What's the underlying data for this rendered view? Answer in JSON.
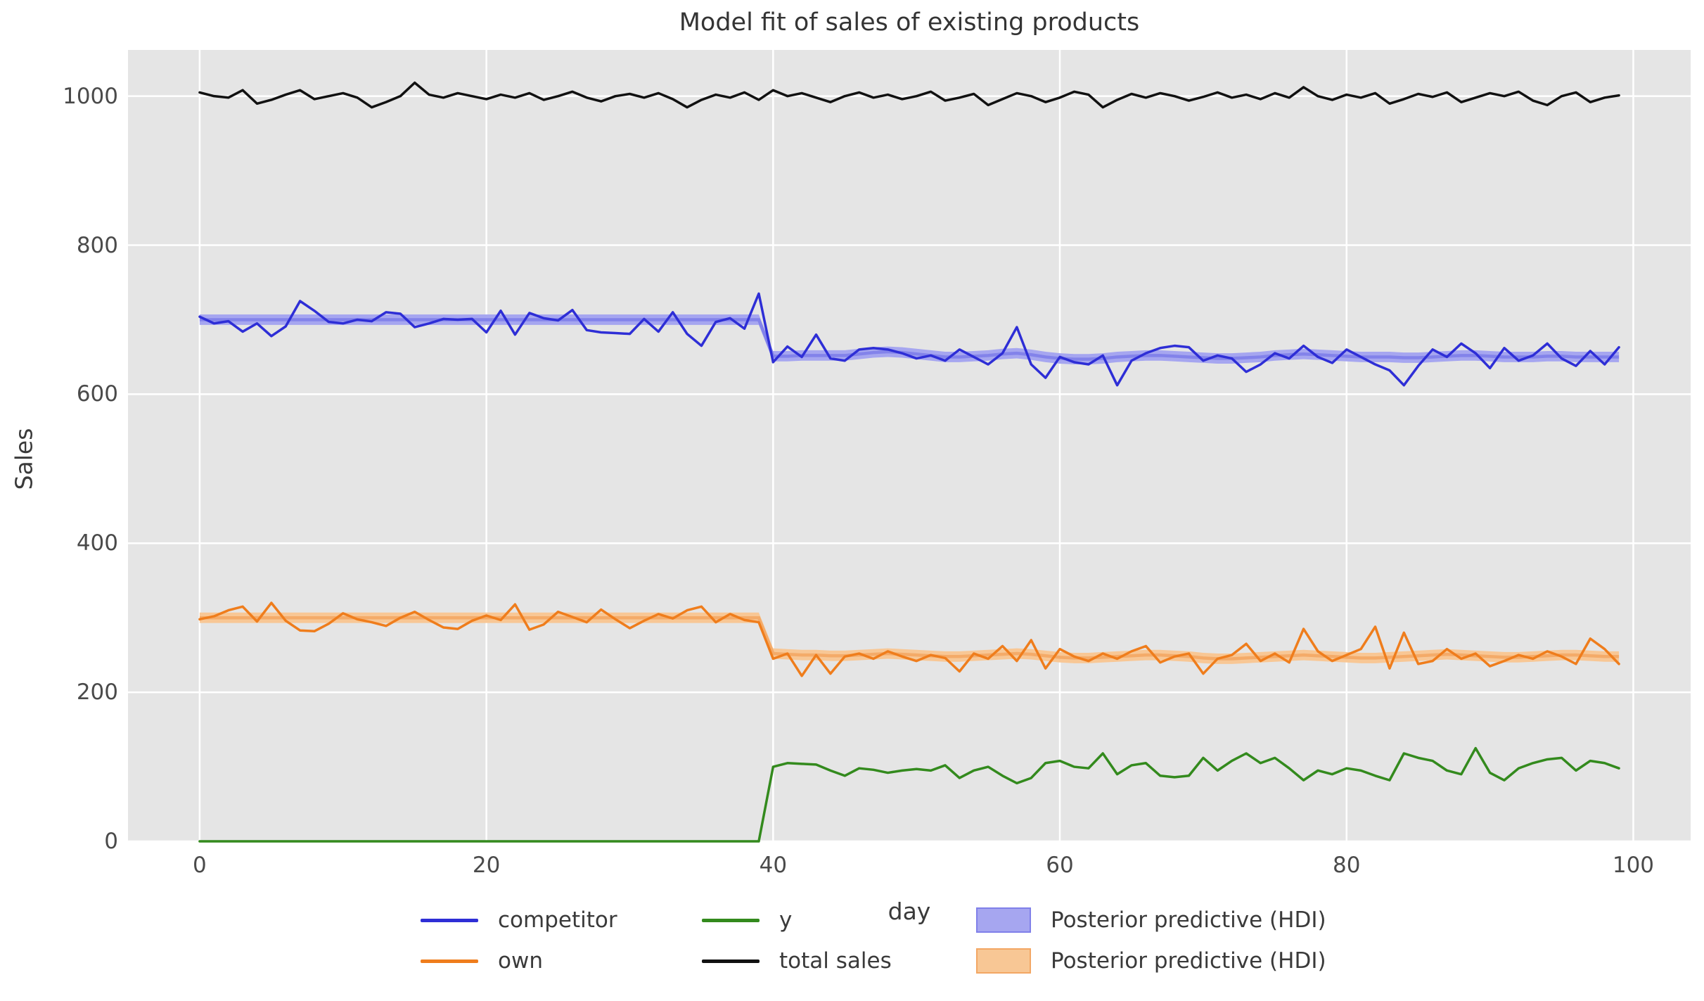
{
  "title": "Model fit of sales of existing products",
  "xlabel": "day",
  "ylabel": "Sales",
  "colors": {
    "plot_background": "#e5e5e5",
    "gridline": "#ffffff",
    "competitor_line": "#2e2ed6",
    "own_line": "#ef7d1c",
    "y_line": "#338a1d",
    "total_line": "#111111",
    "hdi_blue_fill": "#a6a6f0",
    "hdi_blue_edge": "#8080e9",
    "hdi_orange_fill": "#f8c795",
    "hdi_orange_edge": "#f3a764",
    "text": "#3a3a3a"
  },
  "legend": {
    "items": [
      {
        "swatch": "line",
        "color": "#2e2ed6",
        "label": "competitor",
        "row": 0,
        "col": 0
      },
      {
        "swatch": "line",
        "color": "#338a1d",
        "label": "y",
        "row": 0,
        "col": 1
      },
      {
        "swatch": "patch",
        "fill": "#a6a6f0",
        "edge": "#8080e9",
        "label": "Posterior predictive (HDI)",
        "row": 0,
        "col": 2
      },
      {
        "swatch": "line",
        "color": "#ef7d1c",
        "label": "own",
        "row": 1,
        "col": 0
      },
      {
        "swatch": "line",
        "color": "#111111",
        "label": "total sales",
        "row": 1,
        "col": 1
      },
      {
        "swatch": "patch",
        "fill": "#f8c795",
        "edge": "#f3a764",
        "label": "Posterior predictive (HDI)",
        "row": 1,
        "col": 2
      }
    ]
  },
  "chart_data": {
    "type": "line",
    "x_start": 0,
    "x_step": 1,
    "xlim": [
      -5,
      104
    ],
    "ylim": [
      0,
      1062
    ],
    "xticks": [
      0,
      20,
      40,
      60,
      80,
      100
    ],
    "yticks": [
      0,
      200,
      400,
      600,
      800,
      1000
    ],
    "grid": "on",
    "legend_position": "below",
    "series": [
      {
        "name": "competitor",
        "color": "#2e2ed6",
        "width": 3.5,
        "values": [
          704,
          695,
          698,
          684,
          695,
          678,
          691,
          725,
          712,
          697,
          695,
          700,
          698,
          710,
          708,
          690,
          695,
          701,
          700,
          701,
          683,
          712,
          680,
          709,
          702,
          699,
          713,
          686,
          683,
          682,
          681,
          701,
          684,
          710,
          681,
          665,
          697,
          702,
          688,
          735,
          643,
          664,
          650,
          680,
          648,
          645,
          660,
          662,
          660,
          655,
          648,
          652,
          645,
          660,
          650,
          640,
          655,
          690,
          640,
          622,
          650,
          643,
          640,
          652,
          612,
          645,
          655,
          662,
          665,
          663,
          645,
          652,
          648,
          630,
          640,
          655,
          648,
          665,
          650,
          642,
          660,
          650,
          640,
          632,
          612,
          638,
          660,
          650,
          668,
          655,
          635,
          662,
          645,
          652,
          668,
          648,
          638,
          658,
          640,
          663
        ]
      },
      {
        "name": "own",
        "color": "#ef7d1c",
        "width": 3.5,
        "values": [
          298,
          302,
          310,
          315,
          295,
          320,
          296,
          283,
          282,
          292,
          306,
          298,
          294,
          289,
          300,
          308,
          297,
          287,
          285,
          296,
          303,
          297,
          318,
          284,
          291,
          308,
          301,
          294,
          311,
          298,
          286,
          296,
          305,
          299,
          310,
          315,
          294,
          305,
          297,
          294,
          245,
          252,
          222,
          250,
          225,
          248,
          252,
          245,
          255,
          248,
          242,
          250,
          246,
          228,
          252,
          245,
          262,
          242,
          270,
          232,
          258,
          248,
          242,
          252,
          245,
          255,
          262,
          240,
          248,
          252,
          225,
          245,
          250,
          265,
          242,
          252,
          240,
          285,
          255,
          242,
          250,
          258,
          288,
          232,
          280,
          238,
          242,
          258,
          245,
          252,
          235,
          242,
          250,
          245,
          255,
          248,
          238,
          272,
          258,
          238
        ]
      },
      {
        "name": "y",
        "color": "#338a1d",
        "width": 3.5,
        "values": [
          0,
          0,
          0,
          0,
          0,
          0,
          0,
          0,
          0,
          0,
          0,
          0,
          0,
          0,
          0,
          0,
          0,
          0,
          0,
          0,
          0,
          0,
          0,
          0,
          0,
          0,
          0,
          0,
          0,
          0,
          0,
          0,
          0,
          0,
          0,
          0,
          0,
          0,
          0,
          0,
          100,
          105,
          104,
          103,
          95,
          88,
          98,
          96,
          92,
          95,
          97,
          95,
          102,
          85,
          95,
          100,
          88,
          78,
          85,
          105,
          108,
          100,
          98,
          118,
          90,
          102,
          105,
          88,
          86,
          88,
          112,
          95,
          108,
          118,
          105,
          112,
          98,
          82,
          95,
          90,
          98,
          95,
          88,
          82,
          118,
          112,
          108,
          95,
          90,
          125,
          92,
          82,
          98,
          105,
          110,
          112,
          95,
          108,
          105,
          98
        ]
      },
      {
        "name": "total sales",
        "color": "#111111",
        "width": 3.5,
        "values": [
          1005,
          1000,
          998,
          1008,
          990,
          995,
          1002,
          1008,
          996,
          1000,
          1004,
          998,
          985,
          992,
          1000,
          1018,
          1002,
          998,
          1004,
          1000,
          996,
          1002,
          998,
          1004,
          995,
          1000,
          1006,
          998,
          993,
          1000,
          1003,
          998,
          1004,
          996,
          985,
          995,
          1002,
          998,
          1005,
          995,
          1008,
          1000,
          1004,
          998,
          992,
          1000,
          1005,
          998,
          1002,
          996,
          1000,
          1006,
          994,
          998,
          1003,
          988,
          996,
          1004,
          1000,
          992,
          998,
          1006,
          1002,
          985,
          995,
          1003,
          998,
          1004,
          1000,
          994,
          999,
          1005,
          998,
          1002,
          996,
          1004,
          998,
          1012,
          1000,
          995,
          1002,
          998,
          1004,
          990,
          996,
          1003,
          999,
          1005,
          992,
          998,
          1004,
          1000,
          1006,
          994,
          988,
          1000,
          1005,
          992,
          998,
          1001
        ]
      }
    ],
    "bands": [
      {
        "name": "Posterior predictive (HDI) competitor",
        "fill": "#a6a6f0",
        "edge": "#8080e9",
        "halfwidth": 7,
        "mean": [
          700,
          700,
          700,
          700,
          700,
          700,
          700,
          700,
          700,
          700,
          700,
          700,
          700,
          700,
          700,
          700,
          700,
          700,
          700,
          700,
          700,
          700,
          700,
          700,
          700,
          700,
          700,
          700,
          700,
          700,
          700,
          700,
          700,
          700,
          700,
          700,
          700,
          700,
          700,
          700,
          651,
          651,
          652,
          652,
          652,
          652,
          654,
          656,
          657,
          656,
          654,
          652,
          650,
          650,
          651,
          652,
          654,
          655,
          653,
          650,
          648,
          647,
          647,
          648,
          650,
          651,
          652,
          652,
          651,
          650,
          649,
          648,
          648,
          649,
          650,
          652,
          653,
          654,
          653,
          652,
          651,
          650,
          650,
          650,
          649,
          649,
          650,
          651,
          652,
          652,
          651,
          650,
          650,
          650,
          651,
          651,
          650,
          650,
          650,
          650
        ]
      },
      {
        "name": "Posterior predictive (HDI) own",
        "fill": "#f8c795",
        "edge": "#f3a764",
        "halfwidth": 7,
        "mean": [
          300,
          300,
          300,
          300,
          300,
          300,
          300,
          300,
          300,
          300,
          300,
          300,
          300,
          300,
          300,
          300,
          300,
          300,
          300,
          300,
          300,
          300,
          300,
          300,
          300,
          300,
          300,
          300,
          300,
          300,
          300,
          300,
          300,
          300,
          300,
          300,
          300,
          300,
          300,
          300,
          252,
          251,
          250,
          250,
          249,
          249,
          250,
          251,
          252,
          251,
          250,
          249,
          248,
          248,
          249,
          250,
          251,
          252,
          251,
          249,
          247,
          246,
          246,
          247,
          248,
          249,
          250,
          250,
          249,
          248,
          246,
          245,
          245,
          246,
          247,
          248,
          249,
          250,
          249,
          248,
          247,
          246,
          246,
          247,
          248,
          249,
          250,
          251,
          250,
          249,
          248,
          247,
          247,
          248,
          249,
          250,
          250,
          249,
          248,
          248
        ]
      }
    ]
  }
}
